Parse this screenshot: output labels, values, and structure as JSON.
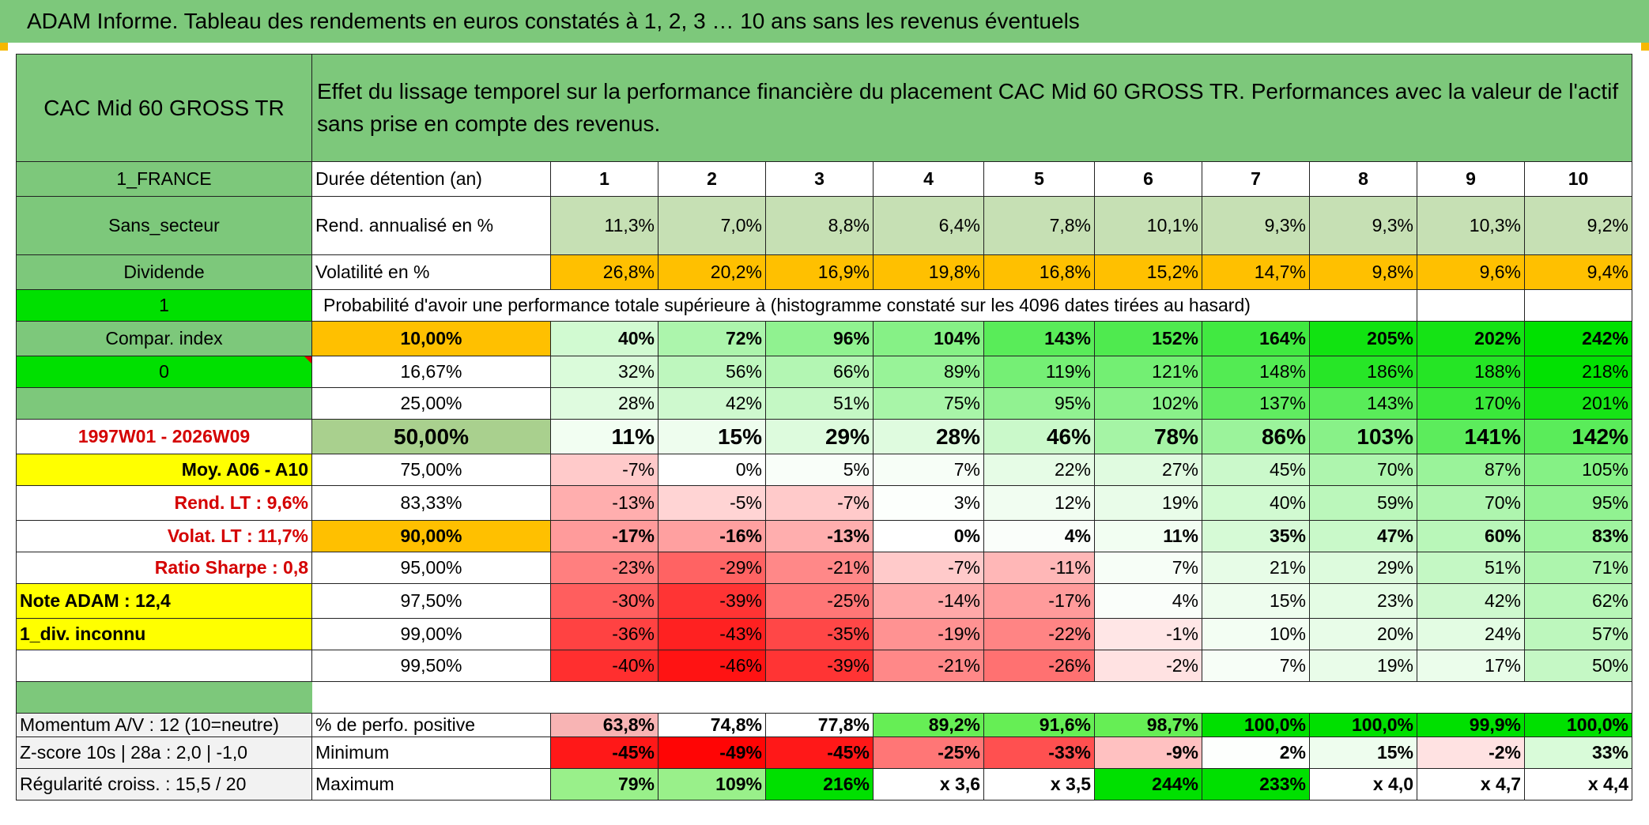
{
  "header": {
    "title": "ADAM Informe. Tableau des rendements en euros constatés à 1, 2, 3 … 10 ans sans les revenus éventuels"
  },
  "fund": {
    "name": "CAC Mid 60 GROSS TR",
    "country": "1_FRANCE",
    "sector": "Sans_secteur",
    "dist": "Dividende",
    "one": "1",
    "compar": "Compar. index",
    "zero": "0",
    "period": "1997W01 - 2026W09",
    "moy": "Moy. A06 - A10",
    "rend_lt": "Rend. LT :   9,6%",
    "volat_lt": "Volat. LT :   11,7%",
    "sharpe": "Ratio Sharpe :   0,8",
    "note": "Note ADAM : 12,4",
    "div": "1_div. inconnu"
  },
  "desc": "Effet du lissage temporel sur la performance financière du placement CAC Mid 60 GROSS TR. Performances avec la valeur de l'actif sans prise en compte des revenus.",
  "labels": {
    "duree": "Durée détention (an)",
    "rend": "Rend. annualisé en %",
    "vol": "Volatilité en %",
    "proba": "Probabilité d'avoir une performance totale supérieure à (histogramme constaté sur les 4096 dates tirées au hasard)"
  },
  "years": [
    "1",
    "2",
    "3",
    "4",
    "5",
    "6",
    "7",
    "8",
    "9",
    "10"
  ],
  "colors": {
    "header_green": "#7dc87b",
    "orange": "#ffc000",
    "yellow": "#ffff00",
    "bright_green": "#00e000",
    "red_text": "#d40000"
  },
  "rend": [
    "11,3%",
    "7,0%",
    "8,8%",
    "6,4%",
    "7,8%",
    "10,1%",
    "9,3%",
    "9,3%",
    "10,3%",
    "9,2%"
  ],
  "vol": [
    "26,8%",
    "20,2%",
    "16,9%",
    "19,8%",
    "16,8%",
    "15,2%",
    "14,7%",
    "9,8%",
    "9,6%",
    "9,4%"
  ],
  "prob_rows": [
    {
      "t": "10,00%",
      "v": [
        "40%",
        "72%",
        "96%",
        "104%",
        "143%",
        "152%",
        "164%",
        "205%",
        "202%",
        "242%"
      ]
    },
    {
      "t": "16,67%",
      "v": [
        "32%",
        "56%",
        "66%",
        "89%",
        "119%",
        "121%",
        "148%",
        "186%",
        "188%",
        "218%"
      ]
    },
    {
      "t": "25,00%",
      "v": [
        "28%",
        "42%",
        "51%",
        "75%",
        "95%",
        "102%",
        "137%",
        "143%",
        "170%",
        "201%"
      ]
    },
    {
      "t": "50,00%",
      "v": [
        "11%",
        "15%",
        "29%",
        "28%",
        "46%",
        "78%",
        "86%",
        "103%",
        "141%",
        "142%"
      ]
    },
    {
      "t": "75,00%",
      "v": [
        "-7%",
        "0%",
        "5%",
        "7%",
        "22%",
        "27%",
        "45%",
        "70%",
        "87%",
        "105%"
      ]
    },
    {
      "t": "83,33%",
      "v": [
        "-13%",
        "-5%",
        "-7%",
        "3%",
        "12%",
        "19%",
        "40%",
        "59%",
        "70%",
        "95%"
      ]
    },
    {
      "t": "90,00%",
      "v": [
        "-17%",
        "-16%",
        "-13%",
        "0%",
        "4%",
        "11%",
        "35%",
        "47%",
        "60%",
        "83%"
      ]
    },
    {
      "t": "95,00%",
      "v": [
        "-23%",
        "-29%",
        "-21%",
        "-7%",
        "-11%",
        "7%",
        "21%",
        "29%",
        "51%",
        "71%"
      ]
    },
    {
      "t": "97,50%",
      "v": [
        "-30%",
        "-39%",
        "-25%",
        "-14%",
        "-17%",
        "4%",
        "15%",
        "23%",
        "42%",
        "62%"
      ]
    },
    {
      "t": "99,00%",
      "v": [
        "-36%",
        "-43%",
        "-35%",
        "-19%",
        "-22%",
        "-1%",
        "10%",
        "20%",
        "24%",
        "57%"
      ]
    },
    {
      "t": "99,50%",
      "v": [
        "-40%",
        "-46%",
        "-39%",
        "-21%",
        "-26%",
        "-2%",
        "7%",
        "19%",
        "17%",
        "50%"
      ]
    }
  ],
  "bottom": [
    {
      "left": "Momentum A/V : 12 (10=neutre)",
      "label": "% de perfo. positive",
      "v": [
        "63,8%",
        "74,8%",
        "77,8%",
        "89,2%",
        "91,6%",
        "98,7%",
        "100,0%",
        "100,0%",
        "99,9%",
        "100,0%"
      ]
    },
    {
      "left": "Z-score 10s | 28a : 2,0 | -1,0",
      "label": "Minimum",
      "v": [
        "-45%",
        "-49%",
        "-45%",
        "-25%",
        "-33%",
        "-9%",
        "2%",
        "15%",
        "-2%",
        "33%"
      ]
    },
    {
      "left": "Régularité croiss. : 15,5 / 20",
      "label": "Maximum",
      "v": [
        "79%",
        "109%",
        "216%",
        "x 3,6",
        "x 3,5",
        "244%",
        "233%",
        "x 4,0",
        "x 4,7",
        "x 4,4"
      ]
    }
  ]
}
